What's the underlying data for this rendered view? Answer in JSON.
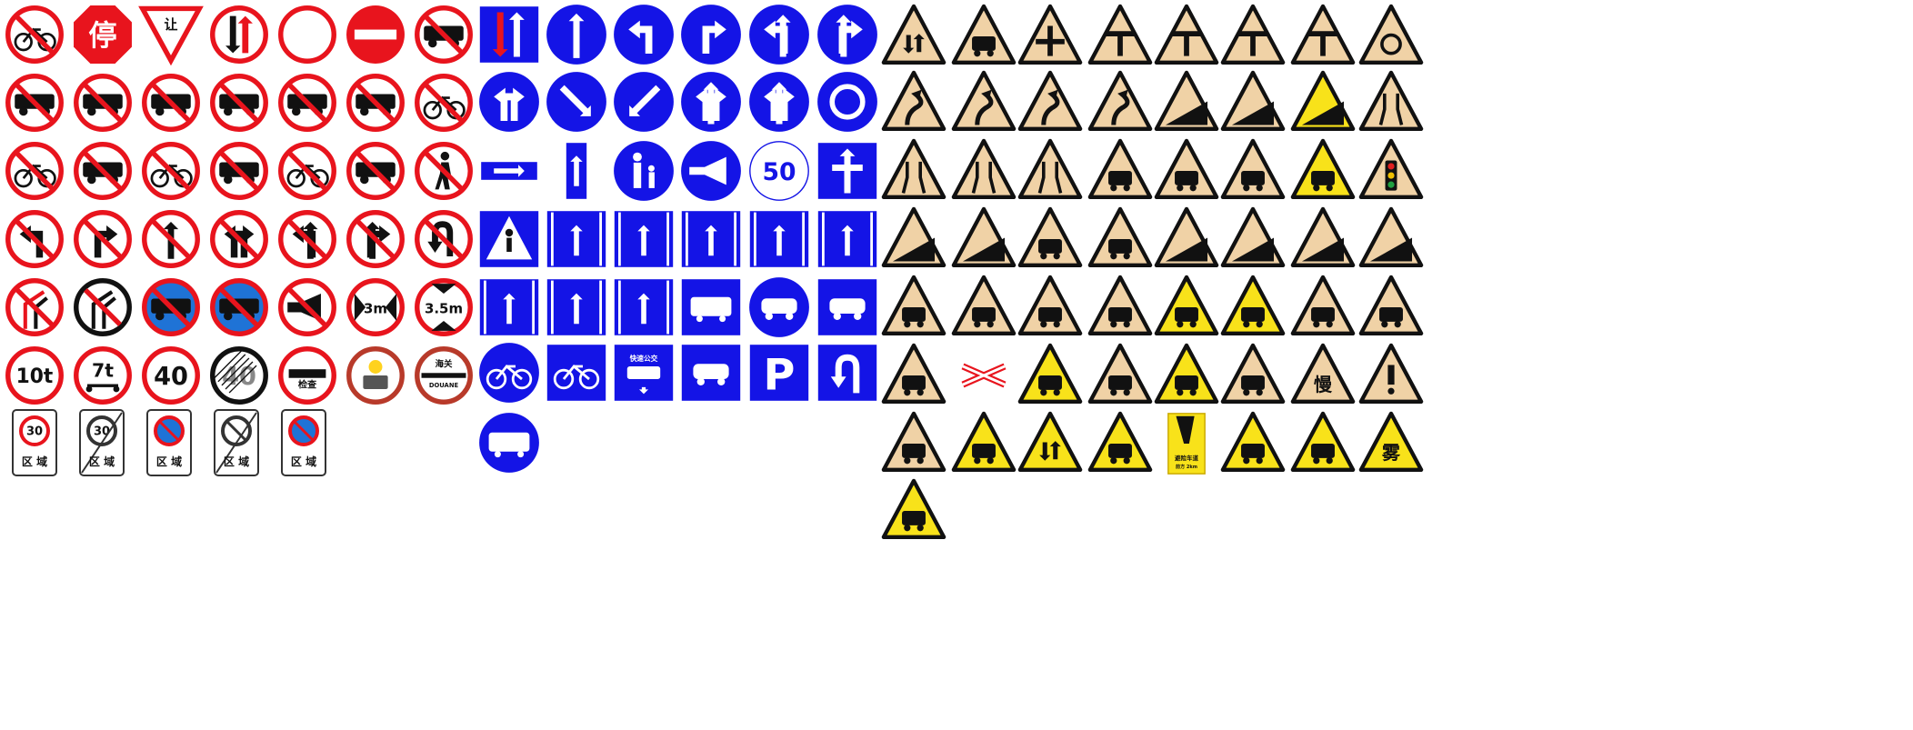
{
  "colors": {
    "prohibit_red": "#e8141d",
    "mandatory_blue": "#1414e6",
    "warning_tan": "#f0d2a6",
    "warning_yellow": "#f8e21a",
    "black": "#111111",
    "white": "#ffffff"
  },
  "prohibition": [
    [
      "no-motorcycle",
      "stop",
      "yield",
      "priority-oncoming",
      "no-entry-blank",
      "no-entry",
      "no-car"
    ],
    [
      "no-truck",
      "no-pickup",
      "no-bus",
      "no-van",
      "no-trailer",
      "no-tractor",
      "no-tricycle"
    ],
    [
      "no-motorbike",
      "no-tractor-2",
      "no-bicycle",
      "no-horse-cart",
      "no-rickshaw",
      "no-handcart",
      "no-pedestrian"
    ],
    [
      "no-left-turn",
      "no-right-turn",
      "no-straight",
      "no-left-right",
      "no-left-straight",
      "no-right-straight",
      "no-u-turn"
    ],
    [
      "no-overtaking",
      "end-no-overtaking",
      "no-stopping",
      "no-parking",
      "no-horn",
      "width-limit",
      "height-limit"
    ],
    [
      "weight-limit",
      "axle-limit",
      "speed-limit",
      "end-speed-limit",
      "inspection",
      "dangerous-goods",
      "customs"
    ]
  ],
  "stop_text": "停",
  "yield_text": "让",
  "width_limit": "3m",
  "height_limit": "3.5m",
  "weight_limit": "10t",
  "axle_limit": "7t",
  "speed_limit": "40",
  "end_speed_limit": "40",
  "inspection_text": "检查",
  "customs_cn": "海关",
  "customs_fr": "DOUANE",
  "zone": {
    "label": "区 域",
    "speed": "30",
    "items": [
      "zone-speed-limit",
      "zone-end-speed-limit",
      "zone-no-parking",
      "zone-end-no-parking",
      "zone-no-parking-2"
    ]
  },
  "mandatory": [
    [
      "priority-over-oncoming",
      "straight-only",
      "left-turn",
      "right-turn",
      "left-and-straight",
      "right-and-straight"
    ],
    [
      "left-and-right",
      "keep-right",
      "keep-left",
      "left-right-straight",
      "straight-and-turns",
      "roundabout"
    ],
    [
      "one-way",
      "one-way-up",
      "pedestrian-lane",
      "sound-horn",
      "min-speed",
      "motor-vehicle-lane"
    ],
    [
      "pedestrian-crossing",
      "lane-right",
      "lane-left",
      "lane-straight",
      "lane-straight-right",
      "lane-left-straight"
    ],
    [
      "lane-u-turn",
      "lane-u-turn-left",
      "lane-arrows",
      "bus-lane",
      "motor-vehicle-only",
      "car-lane"
    ],
    [
      "bicycle-lane",
      "bicycle-lane-arrow",
      "brt-lane",
      "car-lane-2",
      "parking",
      "u-turn"
    ],
    [
      "bus-only"
    ]
  ],
  "min_speed": "50",
  "parking_letter": "P",
  "brt_text": "快速公交",
  "warning": [
    [
      "two-way",
      "uneven-road",
      "crossroad",
      "t-junction-right",
      "t-junction-left",
      "t-junction",
      "y-junction",
      "roundabout"
    ],
    [
      "sharp-curve",
      "reverse-curve",
      "winding-road",
      "continuous-curves",
      "steep-descent",
      "steep-ascent",
      "steep-ascent-yellow",
      "narrowing-both"
    ],
    [
      "narrowing-right",
      "narrowing-left",
      "narrow-bridge",
      "pedestrians",
      "children",
      "cattle",
      "deer",
      "traffic-signals"
    ],
    [
      "falling-rocks-left",
      "falling-rocks-right",
      "crosswind",
      "slippery",
      "cliff-left",
      "cliff-right",
      "embankment-left",
      "embankment-right"
    ],
    [
      "village",
      "tunnel",
      "ferry",
      "hump-bridge",
      "speed-hump",
      "uneven-yellow",
      "ford",
      "guarded-crossing"
    ],
    [
      "unguarded-crossing",
      "railway-cross",
      "train-yellow",
      "bicycles",
      "disabled",
      "accident",
      "slow",
      "danger"
    ],
    [
      "road-works",
      "tunnel-lights",
      "two-way-yellow",
      "merge-yellow",
      "escape-lane",
      "ice",
      "rain",
      "fog"
    ],
    [
      "thunderstorm"
    ]
  ],
  "slow_text": "慢",
  "escape_lane_text": "避险车道",
  "escape_lane_distance": "前方 2km",
  "fog_text": "雾"
}
